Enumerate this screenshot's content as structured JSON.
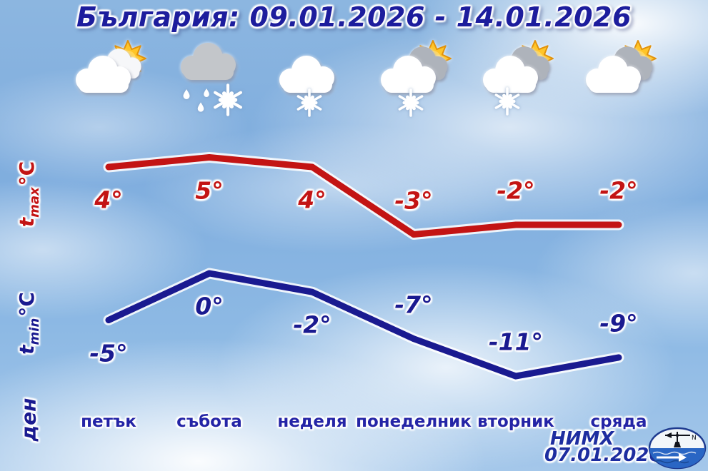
{
  "title": "България: 09.01.2026 - 14.01.2026",
  "axes": {
    "tmax": {
      "symbol": "t",
      "subscript": "max",
      "unit": "°C"
    },
    "tmin": {
      "symbol": "t",
      "subscript": "min",
      "unit": "°C"
    },
    "day_axis": "ден"
  },
  "days": [
    "петък",
    "събота",
    "неделя",
    "понеделник",
    "вторник",
    "сряда"
  ],
  "icons": [
    {
      "name": "sun-behind-cloud",
      "layers": [
        "sun",
        "cloud-white-back",
        "cloud-white"
      ]
    },
    {
      "name": "gray-cloud-rain-snow",
      "layers": [
        "cloud-gray",
        "raindrops",
        "snowflake-right"
      ]
    },
    {
      "name": "cloud-snow",
      "layers": [
        "cloud-white",
        "snowflake-center"
      ]
    },
    {
      "name": "sun-cloud-snow",
      "layers": [
        "sun",
        "cloud-gray-back",
        "cloud-white",
        "snowflake-center"
      ]
    },
    {
      "name": "sun-cloud-snow",
      "layers": [
        "sun",
        "cloud-gray-back",
        "cloud-white",
        "snowflake-left"
      ]
    },
    {
      "name": "sun-behind-clouds",
      "layers": [
        "sun",
        "cloud-gray-back",
        "cloud-white"
      ]
    }
  ],
  "chart_data": {
    "type": "line",
    "categories": [
      "петък",
      "събота",
      "неделя",
      "понеделник",
      "вторник",
      "сряда"
    ],
    "series": [
      {
        "name": "tmax",
        "color": "#c31414",
        "values": [
          4,
          5,
          4,
          -3,
          -2,
          -2
        ],
        "labels": [
          "4°",
          "5°",
          "4°",
          "-3°",
          "-2°",
          "-2°"
        ],
        "label_side": [
          "below",
          "below",
          "below",
          "above",
          "above",
          "above"
        ]
      },
      {
        "name": "tmin",
        "color": "#1a1a90",
        "values": [
          -5,
          0,
          -2,
          -7,
          -11,
          -9
        ],
        "labels": [
          "-5°",
          "0°",
          "-2°",
          "-7°",
          "-11°",
          "-9°"
        ],
        "label_side": [
          "below",
          "below",
          "below",
          "above",
          "above",
          "above"
        ]
      }
    ],
    "title": "България: 09.01.2026 - 14.01.2026",
    "xlabel": "ден",
    "ylabel": "°C",
    "legend": false,
    "grid": false
  },
  "footer": {
    "agency": "НИМХ",
    "date": "07.01.2026",
    "logo": "nimh-logo"
  },
  "colors": {
    "navy": "#1d1d9d",
    "red": "#c31414",
    "sky": "#8cb6e0",
    "water": "#2a66c4"
  }
}
